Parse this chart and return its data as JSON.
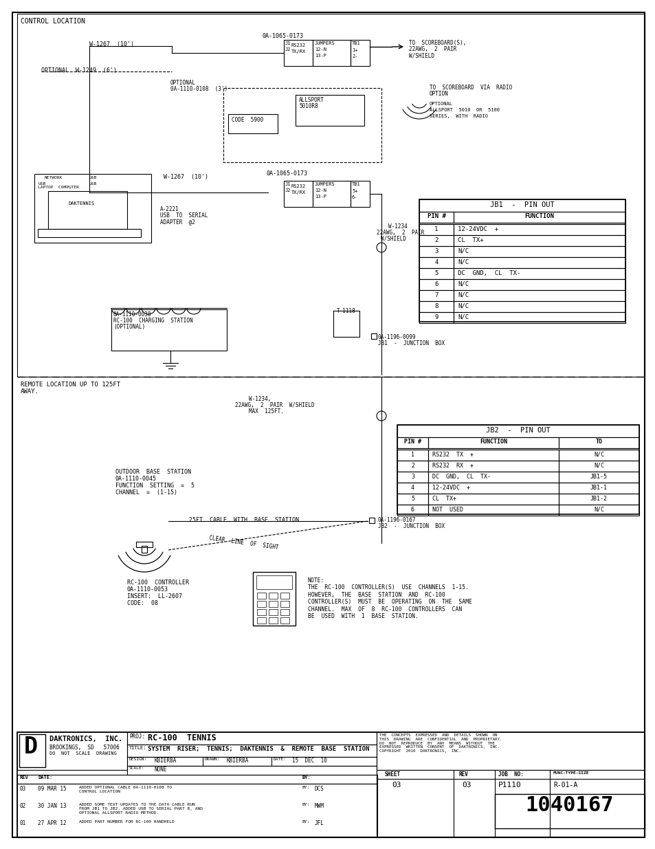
{
  "page_bg": "#ffffff",
  "border_color": "#000000",
  "title": "CONTROL LOCATION",
  "remote_title": "REMOTE LOCATION UP TO 125FT\nAWAY.",
  "jb1_title": "JB1  -  PIN OUT",
  "jb1_headers": [
    "PIN #",
    "FUNCTION"
  ],
  "jb1_rows": [
    [
      "1",
      "12-24VDC  +"
    ],
    [
      "2",
      "CL  TX+"
    ],
    [
      "3",
      "N/C"
    ],
    [
      "4",
      "N/C"
    ],
    [
      "5",
      "DC  GND,  CL  TX-"
    ],
    [
      "6",
      "N/C"
    ],
    [
      "7",
      "N/C"
    ],
    [
      "8",
      "N/C"
    ],
    [
      "9",
      "N/C"
    ]
  ],
  "jb2_title": "JB2  -  PIN OUT",
  "jb2_headers": [
    "PIN #",
    "FUNCTION",
    "TO"
  ],
  "jb2_rows": [
    [
      "1",
      "RS232  TX  +",
      "N/C"
    ],
    [
      "2",
      "RS232  RX  +",
      "N/C"
    ],
    [
      "3",
      "DC  GND,  CL  TX-",
      "JB1-5"
    ],
    [
      "4",
      "12-24VDC  +",
      "JB1-1"
    ],
    [
      "5",
      "CL  TX+",
      "JB1-2"
    ],
    [
      "6",
      "NOT  USED",
      "N/C"
    ]
  ],
  "note_text": "NOTE:\nTHE  RC-100  CONTROLLER(S)  USE  CHANNELS  1-15.\nHOWEVER,  THE  BASE  STATION  AND  RC-100\nCONTROLLER(S)  MUST  BE  OPERATING  ON  THE  SAME\nCHANNEL.  MAX  OF  8  RC-100  CONTROLLERS  CAN\nBE  USED  WITH  1  BASE  STATION.",
  "company": "DAKTRONICS,  INC.",
  "company_addr": "BROOKINGS,  SD   57006",
  "do_not_scale": "DO  NOT  SCALE  DRAWING",
  "proj_label": "PROJ:",
  "proj_value": "RC-100  TENNIS",
  "title_label": "TITLE:",
  "title_value": "SYSTEM  RISER;  TENNIS;  DAKTENNIS  &  REMOTE  BASE  STATION",
  "design_label": "DESIGN:",
  "design_value": "KBIERBA",
  "drawn_label": "DRAWN:",
  "drawn_value": "KBIERBA",
  "date_label": "DATE:",
  "date_value": "15  DEC  10",
  "scale_label": "SCALE:",
  "scale_value": "NONE",
  "sheet_label": "SHEET",
  "rev_label": "REV",
  "job_label": "JOB  NO:",
  "func_label": "FUNC-TYPE-SIZE",
  "sheet_rev": "03",
  "job_no": "P1110",
  "func_val": "R-01-A",
  "drawing_no": "1040167",
  "copyright_text": "THE  CONCEPTS  EXPRESSED  AND  DETAILS  SHOWN  ON\nTHIS  DRAWING  ARE  CONFIDENTIAL  AND  PROPRIETARY.\nDO  NOT  REPRODUCE  BY  ANY  MEANS  WITHOUT  THE\nEXPRESSED  WRITTEN  CONSENT  OF  DAKTRONICS,  INC.\nCOPYRIGHT  2010  DAKTRONICS,  INC.",
  "rev_entries": [
    {
      "rev": "03",
      "date": "09 MAR 15",
      "desc": "ADDED OPTIONAL CABLE 0A-1110-0108 TO\nCONTROL LOCATION",
      "by": "DCS"
    },
    {
      "rev": "02",
      "date": "30 JAN 13",
      "desc": "ADDED SOME TEXT UPDATES TO THE DATA CABLE RUN\nFROM JB1 TO JB2. ADDED USB TO SERIAL PART 8, AND\nOPTIONAL ALLSPORT RADIO METHOD.",
      "by": "MWM"
    },
    {
      "rev": "01",
      "date": "27 APR 12",
      "desc": "ADDED PART NUMBER FOR RC-100 HANDHELD",
      "by": "JFL"
    }
  ]
}
